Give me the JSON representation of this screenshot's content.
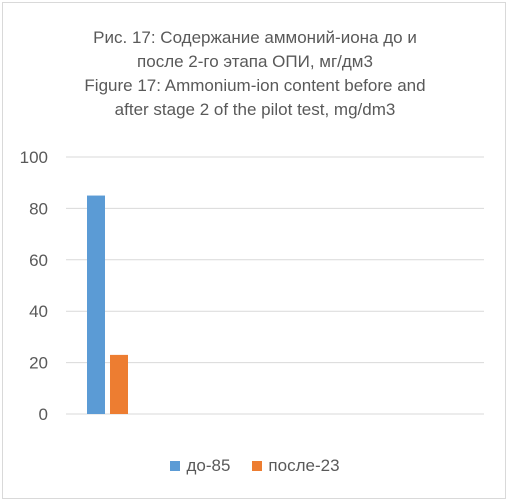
{
  "chart_data": {
    "type": "bar",
    "title_lines": [
      "Рис. 17: Содержание аммоний-иона до и",
      "после 2-го этапа ОПИ, мг/дм3",
      "Figure 17: Ammonium-ion content before and",
      "after stage 2 of the pilot test, mg/dm3"
    ],
    "categories": [
      ""
    ],
    "series": [
      {
        "name": "до-85",
        "values": [
          85
        ],
        "color": "#5b9bd5"
      },
      {
        "name": "после-23",
        "values": [
          23
        ],
        "color": "#ed7d31"
      }
    ],
    "xlabel": "",
    "ylabel": "",
    "ylim": [
      0,
      100
    ],
    "yticks": [
      0,
      20,
      40,
      60,
      80,
      100
    ],
    "ytick_labels": [
      "0",
      "20",
      "40",
      "60",
      "80",
      "100"
    ],
    "grid": true,
    "legend_position": "bottom"
  }
}
